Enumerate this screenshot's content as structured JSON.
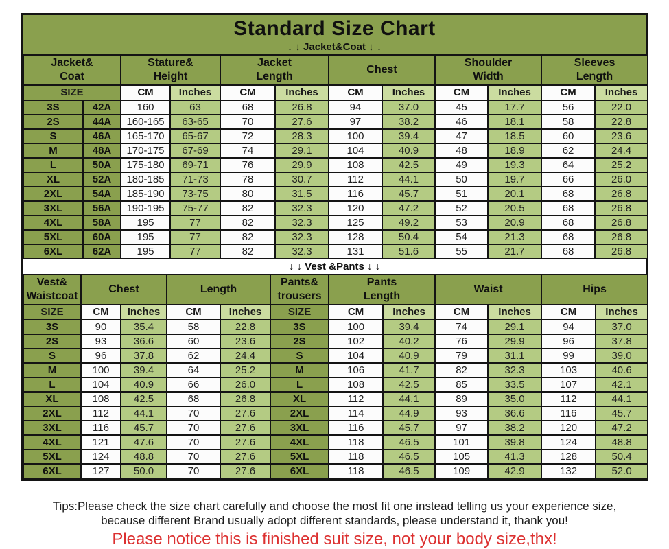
{
  "title": "Standard Size Chart",
  "bands": {
    "jacket": "↓ ↓  Jacket&Coat  ↓ ↓",
    "vest": "↓ ↓  Vest &Pants ↓ ↓"
  },
  "labels": {
    "size": "SIZE",
    "cm": "CM",
    "inches": "Inches"
  },
  "jacket_table": {
    "groups": [
      "Jacket&\nCoat",
      "Stature&\nHeight",
      "Jacket\nLength",
      "Chest",
      "Shoulder\nWidth",
      "Sleeves\nLength"
    ],
    "rows": [
      [
        "3S",
        "42A",
        "160",
        "63",
        "68",
        "26.8",
        "94",
        "37.0",
        "45",
        "17.7",
        "56",
        "22.0"
      ],
      [
        "2S",
        "44A",
        "160-165",
        "63-65",
        "70",
        "27.6",
        "97",
        "38.2",
        "46",
        "18.1",
        "58",
        "22.8"
      ],
      [
        "S",
        "46A",
        "165-170",
        "65-67",
        "72",
        "28.3",
        "100",
        "39.4",
        "47",
        "18.5",
        "60",
        "23.6"
      ],
      [
        "M",
        "48A",
        "170-175",
        "67-69",
        "74",
        "29.1",
        "104",
        "40.9",
        "48",
        "18.9",
        "62",
        "24.4"
      ],
      [
        "L",
        "50A",
        "175-180",
        "69-71",
        "76",
        "29.9",
        "108",
        "42.5",
        "49",
        "19.3",
        "64",
        "25.2"
      ],
      [
        "XL",
        "52A",
        "180-185",
        "71-73",
        "78",
        "30.7",
        "112",
        "44.1",
        "50",
        "19.7",
        "66",
        "26.0"
      ],
      [
        "2XL",
        "54A",
        "185-190",
        "73-75",
        "80",
        "31.5",
        "116",
        "45.7",
        "51",
        "20.1",
        "68",
        "26.8"
      ],
      [
        "3XL",
        "56A",
        "190-195",
        "75-77",
        "82",
        "32.3",
        "120",
        "47.2",
        "52",
        "20.5",
        "68",
        "26.8"
      ],
      [
        "4XL",
        "58A",
        "195",
        "77",
        "82",
        "32.3",
        "125",
        "49.2",
        "53",
        "20.9",
        "68",
        "26.8"
      ],
      [
        "5XL",
        "60A",
        "195",
        "77",
        "82",
        "32.3",
        "128",
        "50.4",
        "54",
        "21.3",
        "68",
        "26.8"
      ],
      [
        "6XL",
        "62A",
        "195",
        "77",
        "82",
        "32.3",
        "131",
        "51.6",
        "55",
        "21.7",
        "68",
        "26.8"
      ]
    ]
  },
  "vest_table": {
    "groups": [
      "Vest&\nWaistcoat",
      "Chest",
      "Length",
      "Pants&\ntrousers",
      "Pants\nLength",
      "Waist",
      "Hips"
    ],
    "rows": [
      [
        "3S",
        "90",
        "35.4",
        "58",
        "22.8",
        "3S",
        "100",
        "39.4",
        "74",
        "29.1",
        "94",
        "37.0"
      ],
      [
        "2S",
        "93",
        "36.6",
        "60",
        "23.6",
        "2S",
        "102",
        "40.2",
        "76",
        "29.9",
        "96",
        "37.8"
      ],
      [
        "S",
        "96",
        "37.8",
        "62",
        "24.4",
        "S",
        "104",
        "40.9",
        "79",
        "31.1",
        "99",
        "39.0"
      ],
      [
        "M",
        "100",
        "39.4",
        "64",
        "25.2",
        "M",
        "106",
        "41.7",
        "82",
        "32.3",
        "103",
        "40.6"
      ],
      [
        "L",
        "104",
        "40.9",
        "66",
        "26.0",
        "L",
        "108",
        "42.5",
        "85",
        "33.5",
        "107",
        "42.1"
      ],
      [
        "XL",
        "108",
        "42.5",
        "68",
        "26.8",
        "XL",
        "112",
        "44.1",
        "89",
        "35.0",
        "112",
        "44.1"
      ],
      [
        "2XL",
        "112",
        "44.1",
        "70",
        "27.6",
        "2XL",
        "114",
        "44.9",
        "93",
        "36.6",
        "116",
        "45.7"
      ],
      [
        "3XL",
        "116",
        "45.7",
        "70",
        "27.6",
        "3XL",
        "116",
        "45.7",
        "97",
        "38.2",
        "120",
        "47.2"
      ],
      [
        "4XL",
        "121",
        "47.6",
        "70",
        "27.6",
        "4XL",
        "118",
        "46.5",
        "101",
        "39.8",
        "124",
        "48.8"
      ],
      [
        "5XL",
        "124",
        "48.8",
        "70",
        "27.6",
        "5XL",
        "118",
        "46.5",
        "105",
        "41.3",
        "128",
        "50.4"
      ],
      [
        "6XL",
        "127",
        "50.0",
        "70",
        "27.6",
        "6XL",
        "118",
        "46.5",
        "109",
        "42.9",
        "132",
        "52.0"
      ]
    ]
  },
  "tips": {
    "line1": "Tips:Please check the size chart carefully and choose the most fit one instead telling us your experience size,",
    "line2": "because different Brand usually adopt different standards, please understand it, thank you!",
    "notice": "Please notice this is finished suit size, not your body size,thx!"
  },
  "colors": {
    "olive_green": "#8AA04E",
    "light_green_cell": "#B4CB83",
    "inches_header_green": "#CBDCA0",
    "white_cell": "#FCFCFC",
    "border_black": "#141414",
    "notice_red": "#DC3030"
  }
}
